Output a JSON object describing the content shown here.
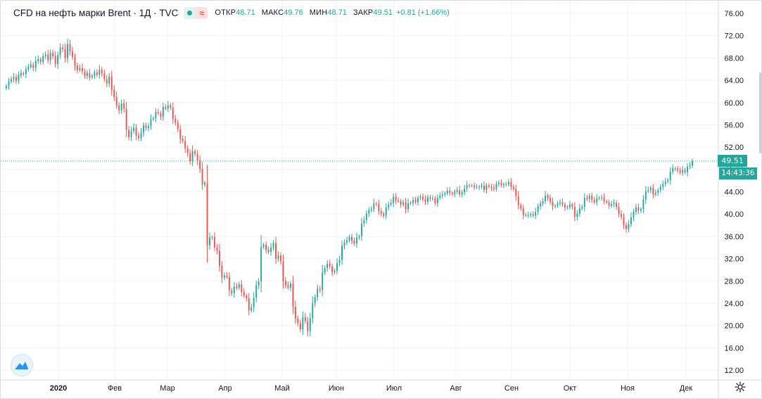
{
  "legend": {
    "title": "CFD на нефть марки Brent · 1Д · TVC",
    "open_label": "ОТКР",
    "open_value": "48.71",
    "high_label": "МАКС",
    "high_value": "49.76",
    "low_label": "МИН",
    "low_value": "48.71",
    "close_label": "ЗАКР",
    "close_value": "49.51",
    "change": "+0.81 (+1.66%)"
  },
  "price_scale_ticks": [
    "76.00",
    "72.00",
    "68.00",
    "64.00",
    "60.00",
    "56.00",
    "52.00",
    "48.00",
    "44.00",
    "40.00",
    "36.00",
    "32.00",
    "28.00",
    "24.00",
    "20.00",
    "16.00",
    "12.00"
  ],
  "time_scale_labels": [
    "2020",
    "Фев",
    "Мар",
    "Апр",
    "Май",
    "Июн",
    "Июл",
    "Авг",
    "Сен",
    "Окт",
    "Ноя",
    "Дек"
  ],
  "last_price_label": "49.51",
  "countdown_label": "14:43:36",
  "colors": {
    "up": "#26a69a",
    "down": "#ef5350",
    "grid": "#f0f3fa",
    "axis_text": "#131722"
  },
  "icons": {
    "logo": "tradingview-logo-icon",
    "settings": "gear-icon"
  },
  "chart_data": {
    "type": "candlestick",
    "title": "CFD на нефть марки Brent · 1Д · TVC",
    "ylim": [
      10,
      78
    ],
    "y_ticks": [
      12,
      16,
      20,
      24,
      28,
      32,
      36,
      40,
      44,
      48,
      52,
      56,
      60,
      64,
      68,
      72,
      76
    ],
    "x_labels": [
      "2020",
      "Фев",
      "Мар",
      "Апр",
      "Май",
      "Июн",
      "Июл",
      "Авг",
      "Сен",
      "Окт",
      "Ноя",
      "Дек"
    ],
    "last_close": 49.51,
    "grid": true,
    "closes": [
      63.0,
      63.8,
      64.2,
      64.6,
      63.9,
      64.9,
      65.3,
      65.1,
      66.0,
      66.4,
      66.8,
      66.2,
      67.5,
      67.8,
      67.3,
      68.3,
      68.6,
      67.6,
      68.9,
      68.3,
      66.9,
      68.5,
      69.9,
      69.6,
      68.0,
      70.5,
      69.2,
      68.2,
      66.6,
      65.8,
      66.2,
      65.6,
      64.8,
      65.3,
      64.5,
      64.8,
      65.4,
      65.0,
      65.9,
      65.2,
      64.2,
      63.4,
      64.7,
      62.3,
      61.0,
      59.5,
      58.6,
      59.8,
      58.9,
      55.1,
      53.8,
      54.9,
      55.5,
      54.1,
      53.6,
      54.6,
      55.9,
      55.4,
      55.8,
      57.0,
      57.2,
      58.3,
      58.1,
      57.5,
      59.2,
      58.9,
      59.5,
      59.1,
      57.1,
      56.4,
      55.2,
      53.5,
      53.1,
      51.8,
      50.9,
      49.5,
      51.3,
      50.8,
      49.6,
      48.1,
      45.3,
      45.6,
      34.4,
      35.8,
      35.9,
      34.0,
      33.4,
      30.7,
      28.6,
      29.0,
      28.7,
      26.3,
      25.8,
      27.0,
      26.8,
      27.4,
      26.0,
      25.4,
      24.9,
      22.7,
      23.3,
      25.0,
      27.2,
      27.9,
      34.1,
      34.5,
      33.6,
      33.2,
      34.0,
      34.8,
      32.0,
      32.6,
      31.5,
      28.0,
      27.2,
      26.8,
      27.5,
      23.4,
      21.3,
      20.4,
      19.3,
      21.5,
      20.8,
      19.0,
      21.3,
      24.0,
      25.1,
      26.6,
      26.4,
      29.5,
      30.3,
      31.1,
      30.6,
      29.6,
      29.8,
      31.2,
      31.8,
      34.3,
      34.9,
      35.3,
      35.9,
      35.2,
      34.7,
      35.8,
      36.0,
      38.3,
      38.9,
      40.1,
      40.7,
      40.9,
      41.9,
      41.8,
      40.5,
      40.1,
      39.7,
      41.2,
      41.7,
      42.0,
      43.1,
      42.4,
      42.3,
      41.7,
      42.1,
      40.9,
      41.9,
      42.0,
      42.5,
      42.2,
      42.9,
      43.1,
      42.6,
      42.2,
      43.0,
      42.8,
      42.8,
      42.0,
      42.9,
      43.3,
      43.5,
      43.7,
      44.2,
      43.8,
      43.6,
      44.0,
      44.3,
      43.5,
      43.9,
      44.6,
      45.2,
      45.1,
      45.1,
      44.8,
      44.8,
      44.9,
      45.1,
      44.3,
      45.1,
      44.9,
      44.7,
      44.5,
      45.4,
      45.6,
      45.2,
      45.4,
      45.3,
      45.7,
      44.9,
      44.5,
      43.2,
      41.6,
      41.0,
      39.8,
      39.8,
      39.8,
      40.0,
      39.7,
      40.4,
      41.4,
      41.9,
      42.3,
      43.3,
      42.9,
      42.2,
      41.4,
      41.5,
      41.9,
      42.1,
      41.7,
      41.2,
      41.2,
      41.7,
      41.3,
      39.5,
      40.1,
      41.0,
      41.3,
      42.9,
      42.7,
      43.3,
      42.5,
      42.1,
      42.8,
      42.9,
      43.0,
      42.3,
      42.1,
      41.5,
      41.8,
      42.0,
      41.3,
      40.0,
      39.5,
      38.0,
      37.3,
      38.2,
      39.4,
      40.4,
      41.2,
      40.6,
      40.9,
      42.6,
      44.1,
      44.3,
      44.7,
      43.5,
      43.8,
      44.3,
      44.9,
      45.4,
      45.8,
      46.1,
      47.6,
      48.2,
      48.2,
      47.8,
      47.4,
      47.9,
      47.5,
      48.5,
      48.7,
      49.5
    ]
  }
}
